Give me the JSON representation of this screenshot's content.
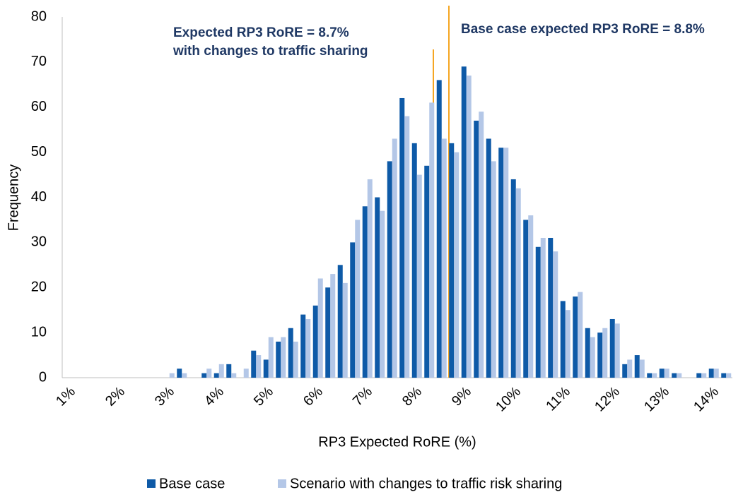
{
  "chart_data": {
    "type": "bar",
    "x_label": "RP3 Expected RoRE (%)",
    "y_label": "Frequency",
    "categories": [
      "1%",
      null,
      null,
      null,
      "2%",
      null,
      null,
      null,
      "3%",
      null,
      null,
      null,
      "4%",
      null,
      null,
      null,
      "5%",
      null,
      null,
      null,
      "6%",
      null,
      null,
      null,
      "7%",
      null,
      null,
      null,
      "8%",
      null,
      null,
      null,
      "9%",
      null,
      null,
      null,
      "10%",
      null,
      null,
      null,
      "11%",
      null,
      null,
      null,
      "12%",
      null,
      null,
      null,
      "13%",
      null,
      null,
      null,
      "14%",
      null
    ],
    "series": [
      {
        "name": "Base case",
        "color": "#0e5aa7",
        "values": [
          0,
          0,
          0,
          0,
          0,
          0,
          0,
          0,
          0,
          2,
          0,
          1,
          1,
          3,
          0,
          6,
          4,
          8,
          11,
          14,
          16,
          20,
          25,
          30,
          38,
          40,
          48,
          62,
          52,
          47,
          66,
          52,
          69,
          57,
          53,
          51,
          44,
          35,
          29,
          31,
          17,
          18,
          11,
          10,
          13,
          3,
          5,
          1,
          2,
          1,
          0,
          1,
          2,
          1
        ]
      },
      {
        "name": "Scenario with changes to traffic risk sharing",
        "color": "#b4c7e7",
        "values": [
          0,
          0,
          0,
          0,
          0,
          0,
          0,
          0,
          1,
          1,
          0,
          2,
          3,
          1,
          2,
          5,
          9,
          9,
          8,
          13,
          22,
          23,
          21,
          35,
          44,
          37,
          53,
          58,
          45,
          61,
          53,
          50,
          67,
          59,
          48,
          51,
          42,
          36,
          31,
          28,
          15,
          19,
          9,
          11,
          12,
          4,
          4,
          1,
          2,
          1,
          0,
          1,
          2,
          1
        ]
      }
    ],
    "ylim": [
      0,
      80
    ],
    "yticks": [
      0,
      10,
      20,
      30,
      40,
      50,
      60,
      70,
      80
    ],
    "grid": false,
    "legend": "bottom",
    "annotations": [
      {
        "lines": [
          "Expected RP3 RoRE = 8.7%",
          "with changes to traffic sharing"
        ]
      },
      {
        "lines": [
          "Base case expected RP3 RoRE = 8.8%"
        ]
      }
    ]
  }
}
